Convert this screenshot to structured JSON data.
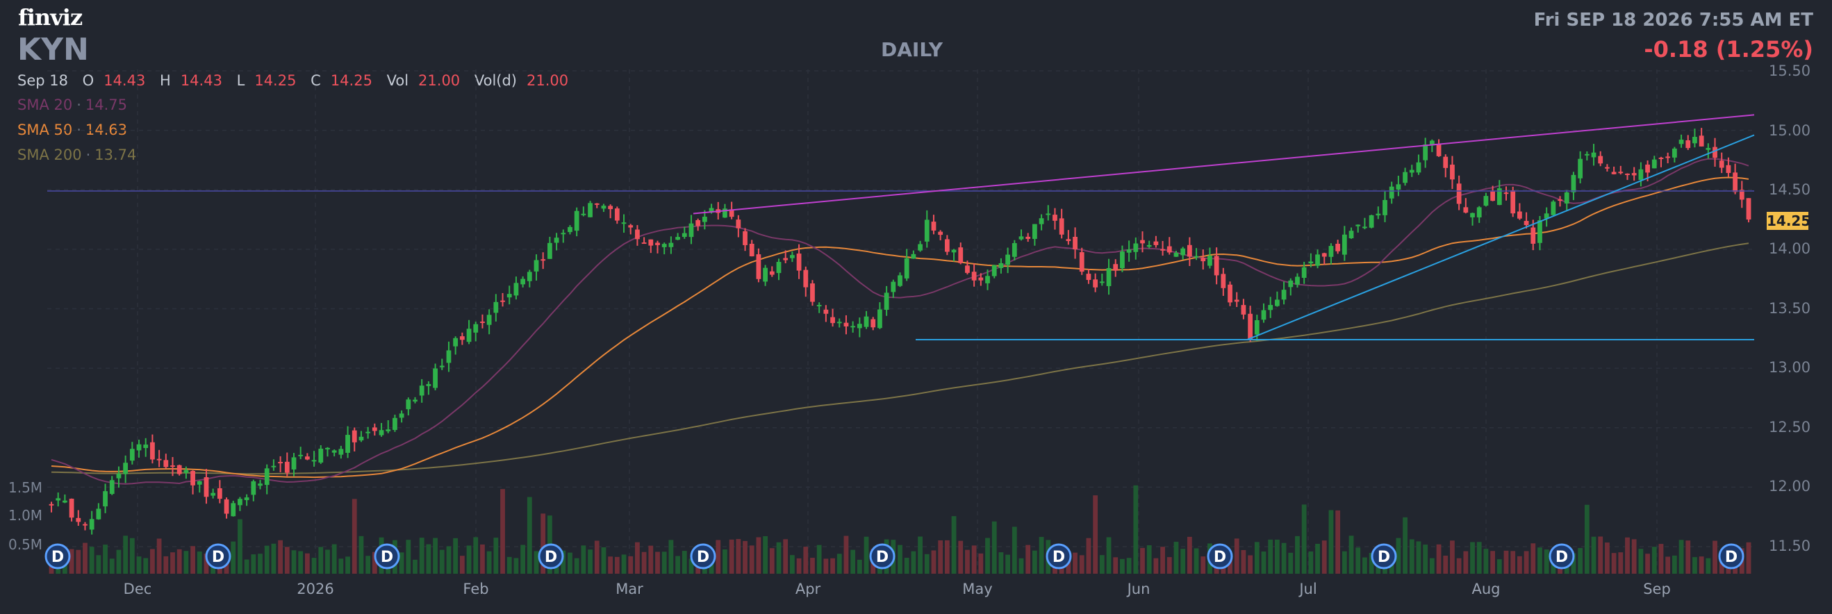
{
  "header": {
    "logo": "finviz",
    "ticker": "KYN",
    "timeframe": "DAILY",
    "datetime": "Fri SEP 18 2026 7:55 AM ET",
    "change": "-0.18 (1.25%)"
  },
  "ohlc": {
    "date": "Sep 18",
    "open_label": "O",
    "open": "14.43",
    "high_label": "H",
    "high": "14.43",
    "low_label": "L",
    "low": "14.25",
    "close_label": "C",
    "close": "14.25",
    "vol_label": "Vol",
    "vol": "21.00",
    "vold_label": "Vol(d)",
    "vold": "21.00"
  },
  "indicators": {
    "sma20": {
      "label": "SMA 20",
      "value": "14.75",
      "color": "#7a3868"
    },
    "sma50": {
      "label": "SMA 50",
      "value": "14.63",
      "color": "#e8883a"
    },
    "sma200": {
      "label": "SMA 200",
      "value": "13.74",
      "color": "#7d7447"
    }
  },
  "last_price": "14.25",
  "colors": {
    "up": "#2fb24a",
    "down": "#f0525d",
    "background": "#22262f"
  },
  "chart_data": {
    "type": "candlestick",
    "x_ticks": [
      "Dec",
      "2026",
      "Feb",
      "Mar",
      "Apr",
      "May",
      "Jun",
      "Jul",
      "Aug",
      "Sep"
    ],
    "y_ticks": [
      "15.50",
      "15.00",
      "14.50",
      "14.00",
      "13.50",
      "13.00",
      "12.50",
      "12.00",
      "11.50"
    ],
    "ylim": [
      11.5,
      15.5
    ],
    "volume_ticks": [
      "1.5M",
      "1.0M",
      "0.5M"
    ],
    "dividend_marker": "D",
    "dividend_marker_count": 11,
    "anchors": [
      {
        "t": 0,
        "c": 11.9
      },
      {
        "t": 6,
        "c": 11.7
      },
      {
        "t": 12,
        "c": 12.35
      },
      {
        "t": 18,
        "c": 12.2
      },
      {
        "t": 26,
        "c": 11.8
      },
      {
        "t": 32,
        "c": 12.1
      },
      {
        "t": 40,
        "c": 12.3
      },
      {
        "t": 50,
        "c": 12.5
      },
      {
        "t": 60,
        "c": 13.2
      },
      {
        "t": 72,
        "c": 13.9
      },
      {
        "t": 80,
        "c": 14.4
      },
      {
        "t": 90,
        "c": 14.0
      },
      {
        "t": 100,
        "c": 14.4
      },
      {
        "t": 105,
        "c": 13.8
      },
      {
        "t": 110,
        "c": 13.9
      },
      {
        "t": 115,
        "c": 13.4
      },
      {
        "t": 122,
        "c": 13.4
      },
      {
        "t": 130,
        "c": 14.2
      },
      {
        "t": 138,
        "c": 13.7
      },
      {
        "t": 148,
        "c": 14.3
      },
      {
        "t": 155,
        "c": 13.7
      },
      {
        "t": 162,
        "c": 14.1
      },
      {
        "t": 172,
        "c": 13.9
      },
      {
        "t": 178,
        "c": 13.3
      },
      {
        "t": 185,
        "c": 13.8
      },
      {
        "t": 195,
        "c": 14.2
      },
      {
        "t": 205,
        "c": 14.9
      },
      {
        "t": 210,
        "c": 14.3
      },
      {
        "t": 215,
        "c": 14.5
      },
      {
        "t": 220,
        "c": 14.1
      },
      {
        "t": 228,
        "c": 14.8
      },
      {
        "t": 235,
        "c": 14.6
      },
      {
        "t": 242,
        "c": 14.9
      },
      {
        "t": 246,
        "c": 14.9
      },
      {
        "t": 250,
        "c": 14.5
      },
      {
        "t": 252,
        "c": 14.25
      }
    ]
  }
}
